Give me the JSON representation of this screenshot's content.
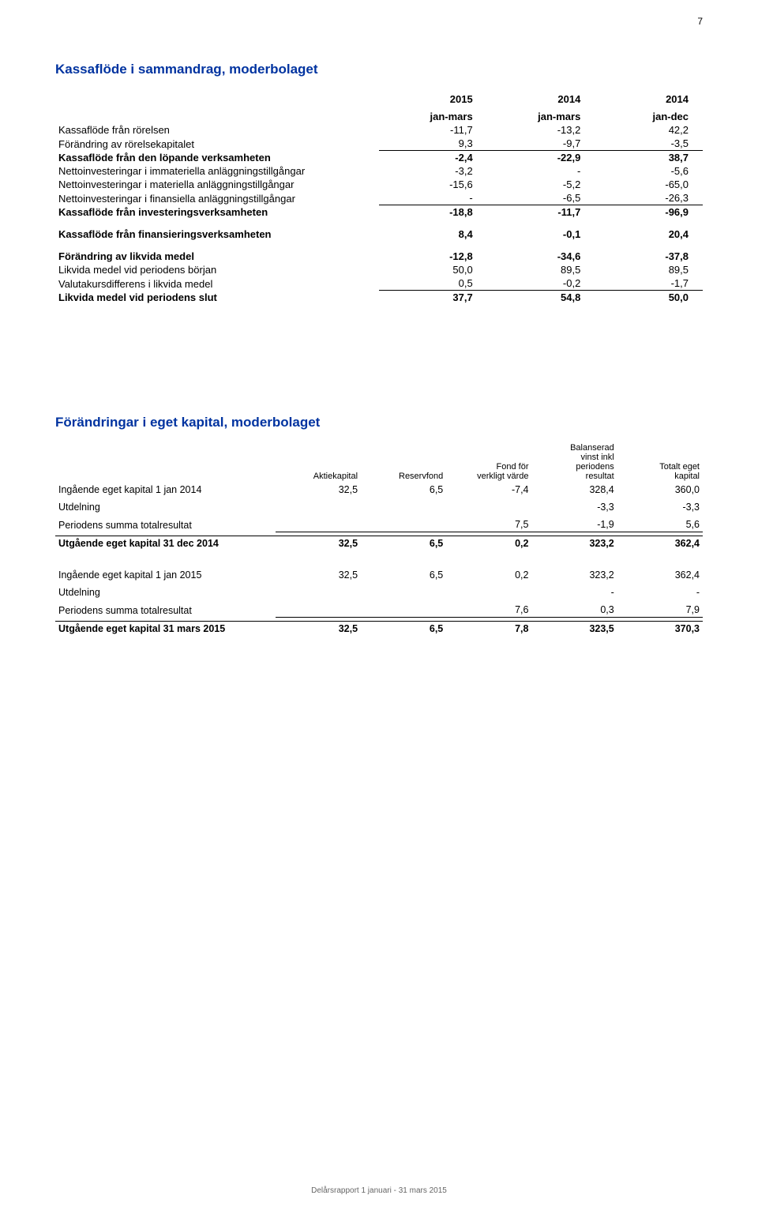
{
  "page_number": "7",
  "footer_text": "Delårsrapport 1 januari - 31 mars 2015",
  "colors": {
    "heading": "#0033a0",
    "text": "#000000",
    "background": "#ffffff",
    "footer": "#666666",
    "rule": "#000000"
  },
  "typography": {
    "body_font": "Arial, Helvetica, sans-serif",
    "heading_size_pt": 13,
    "body_size_pt": 10,
    "small_size_pt": 8
  },
  "cashflow": {
    "title": "Kassaflöde i sammandrag, moderbolaget",
    "columns": [
      {
        "year": "2015",
        "period": "jan-mars"
      },
      {
        "year": "2014",
        "period": "jan-mars"
      },
      {
        "year": "2014",
        "period": "jan-dec"
      }
    ],
    "rows": [
      {
        "label": "Kassaflöde från rörelsen",
        "v": [
          "-11,7",
          "-13,2",
          "42,2"
        ],
        "bold": false,
        "underline": false
      },
      {
        "label": "Förändring av rörelsekapitalet",
        "v": [
          "9,3",
          "-9,7",
          "-3,5"
        ],
        "bold": false,
        "underline": true
      },
      {
        "label": "Kassaflöde från den löpande verksamheten",
        "v": [
          "-2,4",
          "-22,9",
          "38,7"
        ],
        "bold": true,
        "underline": false
      },
      {
        "label": "Nettoinvesteringar i immateriella anläggningstillgångar",
        "v": [
          "-3,2",
          "-",
          "-5,6"
        ],
        "bold": false,
        "underline": false
      },
      {
        "label": "Nettoinvesteringar i materiella anläggningstillgångar",
        "v": [
          "-15,6",
          "-5,2",
          "-65,0"
        ],
        "bold": false,
        "underline": false
      },
      {
        "label": "Nettoinvesteringar i finansiella anläggningstillgångar",
        "v": [
          "-",
          "-6,5",
          "-26,3"
        ],
        "bold": false,
        "underline": true
      },
      {
        "label": "Kassaflöde från investeringsverksamheten",
        "v": [
          "-18,8",
          "-11,7",
          "-96,9"
        ],
        "bold": true,
        "underline": false
      },
      {
        "label": "Kassaflöde från finansieringsverksamheten",
        "v": [
          "8,4",
          "-0,1",
          "20,4"
        ],
        "bold": true,
        "underline": false,
        "spacer": true
      },
      {
        "label": "Förändring av likvida medel",
        "v": [
          "-12,8",
          "-34,6",
          "-37,8"
        ],
        "bold": true,
        "underline": false,
        "spacer": true
      },
      {
        "label": "Likvida medel vid periodens början",
        "v": [
          "50,0",
          "89,5",
          "89,5"
        ],
        "bold": false,
        "underline": false
      },
      {
        "label": "Valutakursdifferens i likvida medel",
        "v": [
          "0,5",
          "-0,2",
          "-1,7"
        ],
        "bold": false,
        "underline": true
      },
      {
        "label": "Likvida medel vid periodens slut",
        "v": [
          "37,7",
          "54,8",
          "50,0"
        ],
        "bold": true,
        "underline": false
      }
    ]
  },
  "equity": {
    "title": "Förändringar i eget kapital, moderbolaget",
    "columns": [
      "Aktiekapital",
      "Reservfond",
      "Fond för verkligt värde",
      "Balanserad vinst inkl periodens resultat",
      "Totalt eget kapital"
    ],
    "section1": [
      {
        "label": "Ingående eget kapital 1 jan 2014",
        "v": [
          "32,5",
          "6,5",
          "-7,4",
          "328,4",
          "360,0"
        ],
        "line_under": false
      },
      {
        "label": "Utdelning",
        "v": [
          "",
          "",
          "",
          "-3,3",
          "-3,3"
        ],
        "line_under": false
      },
      {
        "label": "Periodens summa totalresultat",
        "v": [
          "",
          "",
          "7,5",
          "-1,9",
          "5,6"
        ],
        "line_under": true
      },
      {
        "label": "Utgående eget kapital 31 dec 2014",
        "v": [
          "32,5",
          "6,5",
          "0,2",
          "323,2",
          "362,4"
        ],
        "sum": true
      }
    ],
    "section2": [
      {
        "label": "Ingående eget kapital 1 jan 2015",
        "v": [
          "32,5",
          "6,5",
          "0,2",
          "323,2",
          "362,4"
        ],
        "line_under": false
      },
      {
        "label": "Utdelning",
        "v": [
          "",
          "",
          "",
          "-",
          "-"
        ],
        "line_under": false
      },
      {
        "label": "Periodens summa totalresultat",
        "v": [
          "",
          "",
          "7,6",
          "0,3",
          "7,9"
        ],
        "line_under": true
      },
      {
        "label": "Utgående eget kapital 31 mars 2015",
        "v": [
          "32,5",
          "6,5",
          "7,8",
          "323,5",
          "370,3"
        ],
        "sum": true
      }
    ]
  }
}
